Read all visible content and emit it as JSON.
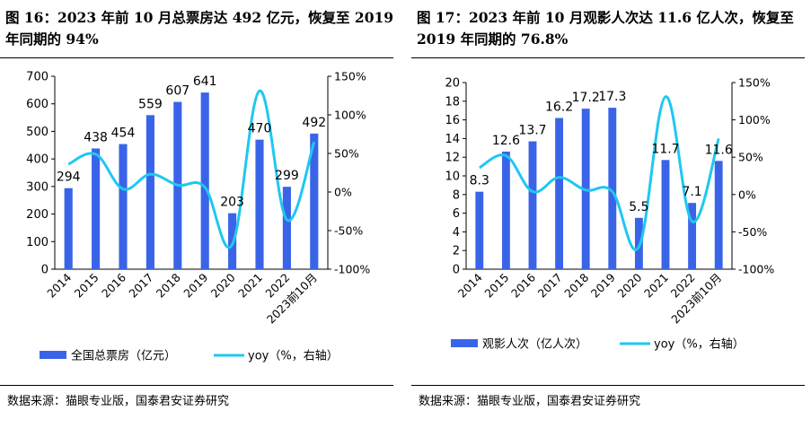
{
  "panels": [
    {
      "title": "图 16：2023 年前 10 月总票房达 492 亿元，恢复至 2019 年同期的 94%",
      "source": "数据来源：猫眼专业版，国泰君安证券研究"
    },
    {
      "title": "图 17：2023 年前 10 月观影人次达 11.6 亿人次，恢复至 2019 年同期的 76.8%",
      "source": "数据来源：猫眼专业版，国泰君安证券研究"
    }
  ],
  "colors": {
    "bar": "#3A64E8",
    "line": "#1EC8F0"
  },
  "chart_data": [
    {
      "type": "bar",
      "categories": [
        "2014",
        "2015",
        "2016",
        "2017",
        "2018",
        "2019",
        "2020",
        "2021",
        "2022",
        "2023前10月"
      ],
      "series": [
        {
          "name": "全国总票房（亿元）",
          "type": "bar",
          "axis": "left",
          "values": [
            294,
            438,
            454,
            559,
            607,
            641,
            203,
            470,
            299,
            492
          ],
          "labels": [
            "294",
            "438",
            "454",
            "559",
            "607",
            "641",
            "203",
            "470",
            "299",
            "492"
          ]
        },
        {
          "name": "yoy（%，右轴）",
          "type": "line",
          "axis": "right",
          "values": [
            36,
            49,
            4,
            23,
            9,
            6,
            -68,
            131,
            -36,
            65
          ]
        }
      ],
      "left_axis": {
        "min": 0,
        "max": 700,
        "ticks": [
          "0",
          "100",
          "200",
          "300",
          "400",
          "500",
          "600",
          "700"
        ]
      },
      "right_axis": {
        "min": -100,
        "max": 150,
        "ticks": [
          "-100%",
          "-50%",
          "0%",
          "50%",
          "100%",
          "150%"
        ]
      },
      "legend_position": "bottom"
    },
    {
      "type": "bar",
      "categories": [
        "2014",
        "2015",
        "2016",
        "2017",
        "2018",
        "2019",
        "2020",
        "2021",
        "2022",
        "2023前10月"
      ],
      "series": [
        {
          "name": "观影人次（亿人次）",
          "type": "bar",
          "axis": "left",
          "values": [
            8.3,
            12.6,
            13.7,
            16.2,
            17.2,
            17.3,
            5.5,
            11.7,
            7.1,
            11.6
          ],
          "labels": [
            "8.3",
            "12.6",
            "13.7",
            "16.2",
            "17.2",
            "17.3",
            "5.5",
            "11.7",
            "7.1",
            "11.6"
          ]
        },
        {
          "name": "yoy（%，右轴）",
          "type": "line",
          "axis": "right",
          "values": [
            36,
            52,
            4,
            23,
            6,
            4,
            -70,
            131,
            -36,
            75
          ]
        }
      ],
      "left_axis": {
        "min": 0,
        "max": 20,
        "ticks": [
          "0",
          "2",
          "4",
          "6",
          "8",
          "10",
          "12",
          "14",
          "16",
          "18",
          "20"
        ]
      },
      "right_axis": {
        "min": -100,
        "max": 150,
        "ticks": [
          "-100%",
          "-50%",
          "0%",
          "50%",
          "100%",
          "150%"
        ]
      },
      "legend_position": "bottom"
    }
  ]
}
